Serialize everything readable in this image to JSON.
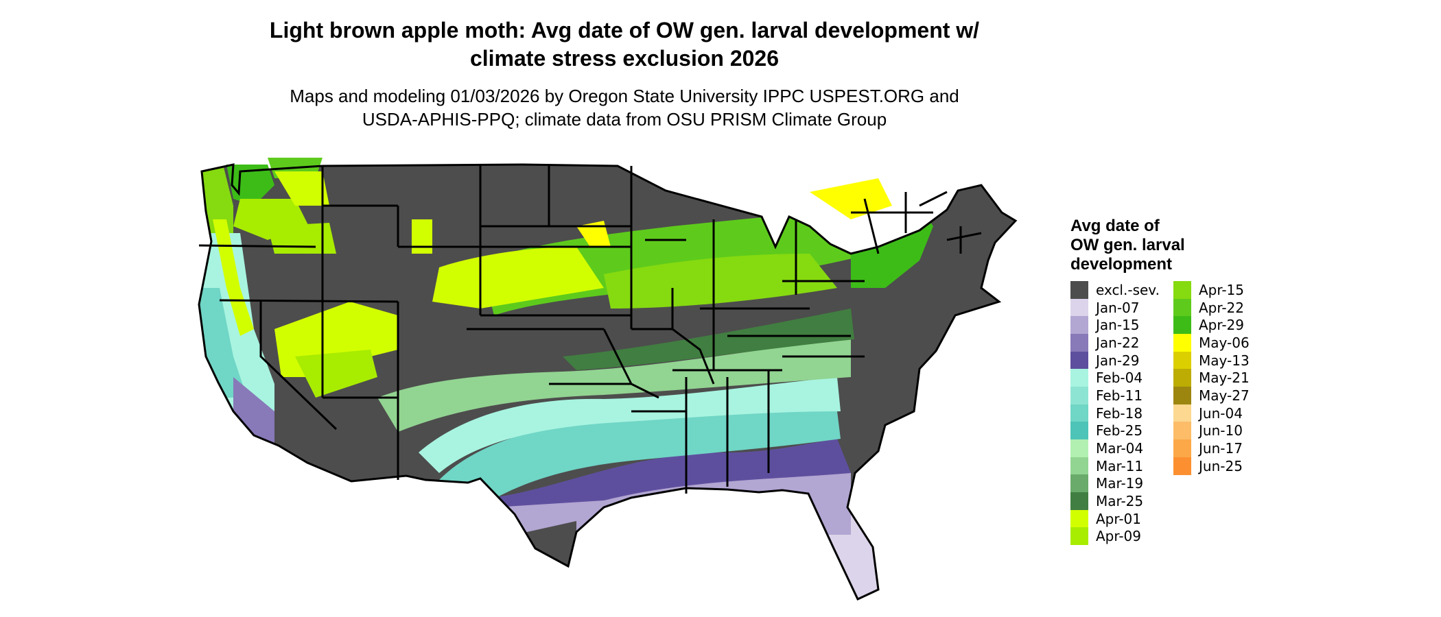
{
  "title_line1": "Light brown apple moth: Avg date of OW gen. larval development w/",
  "title_line2": "climate stress exclusion 2026",
  "subtitle_line1": "Maps and modeling 01/03/2026 by Oregon State University IPPC USPEST.ORG and",
  "subtitle_line2": "USDA-APHIS-PPQ; climate data from OSU PRISM Climate Group",
  "legend": {
    "title_lines": [
      "Avg date of",
      "OW gen. larval",
      "development"
    ],
    "items": [
      {
        "label": "excl.-sev.",
        "color": "#4d4d4d"
      },
      {
        "label": "Jan-07",
        "color": "#dcd4ea"
      },
      {
        "label": "Jan-15",
        "color": "#b2a6d2"
      },
      {
        "label": "Jan-22",
        "color": "#8879b8"
      },
      {
        "label": "Jan-29",
        "color": "#5e4f9e"
      },
      {
        "label": "Feb-04",
        "color": "#a8f4e0"
      },
      {
        "label": "Feb-11",
        "color": "#8ee4d2"
      },
      {
        "label": "Feb-18",
        "color": "#70d6c6"
      },
      {
        "label": "Feb-25",
        "color": "#4ec4b8"
      },
      {
        "label": "Mar-04",
        "color": "#b2f0b2"
      },
      {
        "label": "Mar-11",
        "color": "#92d492"
      },
      {
        "label": "Mar-19",
        "color": "#6aaa6a"
      },
      {
        "label": "Mar-25",
        "color": "#417e41"
      },
      {
        "label": "Apr-01",
        "color": "#d2ff00"
      },
      {
        "label": "Apr-09",
        "color": "#a8ec00"
      },
      {
        "label": "Apr-15",
        "color": "#86da10"
      },
      {
        "label": "Apr-22",
        "color": "#5ecb1c"
      },
      {
        "label": "Apr-29",
        "color": "#3dbc18"
      },
      {
        "label": "May-06",
        "color": "#ffff00"
      },
      {
        "label": "May-13",
        "color": "#dccf00"
      },
      {
        "label": "May-21",
        "color": "#bcac04"
      },
      {
        "label": "May-27",
        "color": "#9c8610"
      },
      {
        "label": "Jun-04",
        "color": "#fcd890"
      },
      {
        "label": "Jun-10",
        "color": "#fcbc68"
      },
      {
        "label": "Jun-17",
        "color": "#fca848"
      },
      {
        "label": "Jun-25",
        "color": "#fc9030"
      }
    ]
  }
}
